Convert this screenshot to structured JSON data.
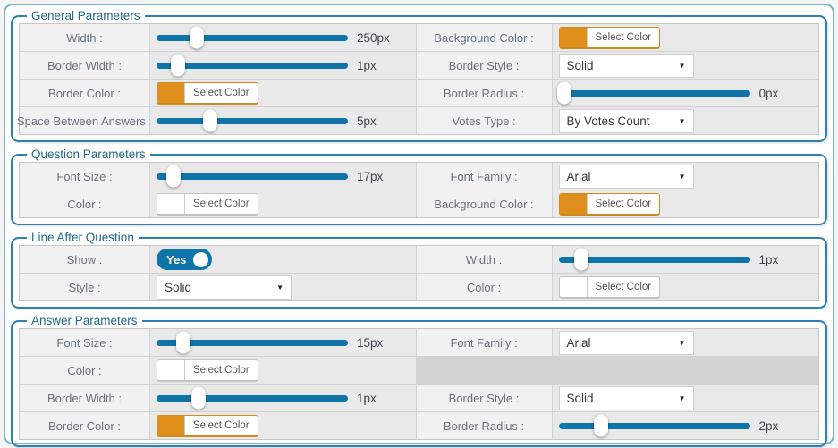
{
  "colors": {
    "accent_blue": "#0f74a8",
    "fieldset_border": "#2e80b1",
    "outer_border": "#7ab4d5",
    "orange_swatch": "#e08f1d",
    "white_swatch": "#ffffff"
  },
  "sections": [
    {
      "legend": "General Parameters",
      "rows": [
        {
          "cells": [
            {
              "label": "Width :",
              "control": {
                "type": "slider",
                "value": "250px",
                "pos": 21
              }
            },
            {
              "label": "Background Color :",
              "control": {
                "type": "color",
                "swatch": "#e08f1d",
                "button_label": "Select Color"
              }
            }
          ]
        },
        {
          "cells": [
            {
              "label": "Border Width :",
              "control": {
                "type": "slider",
                "value": "1px",
                "pos": 11
              }
            },
            {
              "label": "Border Style :",
              "control": {
                "type": "select",
                "value": "Solid"
              }
            }
          ]
        },
        {
          "cells": [
            {
              "label": "Border Color :",
              "control": {
                "type": "color",
                "swatch": "#e08f1d",
                "button_label": "Select Color"
              }
            },
            {
              "label": "Border Radius :",
              "control": {
                "type": "slider",
                "value": "0px",
                "pos": 3
              }
            }
          ]
        },
        {
          "cells": [
            {
              "label": "Space Between Answers :",
              "control": {
                "type": "slider",
                "value": "5px",
                "pos": 28
              }
            },
            {
              "label": "Votes Type :",
              "control": {
                "type": "select",
                "value": "By Votes Count"
              }
            }
          ]
        }
      ]
    },
    {
      "legend": "Question Parameters",
      "rows": [
        {
          "cells": [
            {
              "label": "Font Size :",
              "control": {
                "type": "slider",
                "value": "17px",
                "pos": 9
              }
            },
            {
              "label": "Font Family :",
              "control": {
                "type": "select",
                "value": "Arial"
              }
            }
          ]
        },
        {
          "cells": [
            {
              "label": "Color :",
              "control": {
                "type": "color",
                "swatch": "#ffffff",
                "button_label": "Select Color"
              }
            },
            {
              "label": "Background Color :",
              "control": {
                "type": "color",
                "swatch": "#e08f1d",
                "button_label": "Select Color"
              }
            }
          ]
        }
      ]
    },
    {
      "legend": "Line After Question",
      "rows": [
        {
          "cells": [
            {
              "label": "Show :",
              "control": {
                "type": "toggle",
                "value": "Yes",
                "on": true
              }
            },
            {
              "label": "Width :",
              "control": {
                "type": "slider",
                "value": "1px",
                "pos": 12
              }
            }
          ]
        },
        {
          "cells": [
            {
              "label": "Style :",
              "control": {
                "type": "select",
                "value": "Solid"
              }
            },
            {
              "label": "Color :",
              "control": {
                "type": "color",
                "swatch": "#ffffff",
                "button_label": "Select Color"
              }
            }
          ]
        }
      ]
    },
    {
      "legend": "Answer Parameters",
      "rows": [
        {
          "cells": [
            {
              "label": "Font Size :",
              "control": {
                "type": "slider",
                "value": "15px",
                "pos": 14
              }
            },
            {
              "label": "Font Family :",
              "control": {
                "type": "select",
                "value": "Arial"
              }
            }
          ]
        },
        {
          "cells": [
            {
              "label": "Color :",
              "control": {
                "type": "color",
                "swatch": "#ffffff",
                "button_label": "Select Color"
              }
            },
            {
              "control": {
                "type": "empty"
              }
            }
          ]
        },
        {
          "cells": [
            {
              "label": "Border Width :",
              "control": {
                "type": "slider",
                "value": "1px",
                "pos": 22
              }
            },
            {
              "label": "Border Style :",
              "control": {
                "type": "select",
                "value": "Solid"
              }
            }
          ]
        },
        {
          "cells": [
            {
              "label": "Border Color :",
              "control": {
                "type": "color",
                "swatch": "#e08f1d",
                "button_label": "Select Color"
              }
            },
            {
              "label": "Border Radius :",
              "control": {
                "type": "slider",
                "value": "2px",
                "pos": 22
              }
            }
          ]
        }
      ]
    }
  ]
}
